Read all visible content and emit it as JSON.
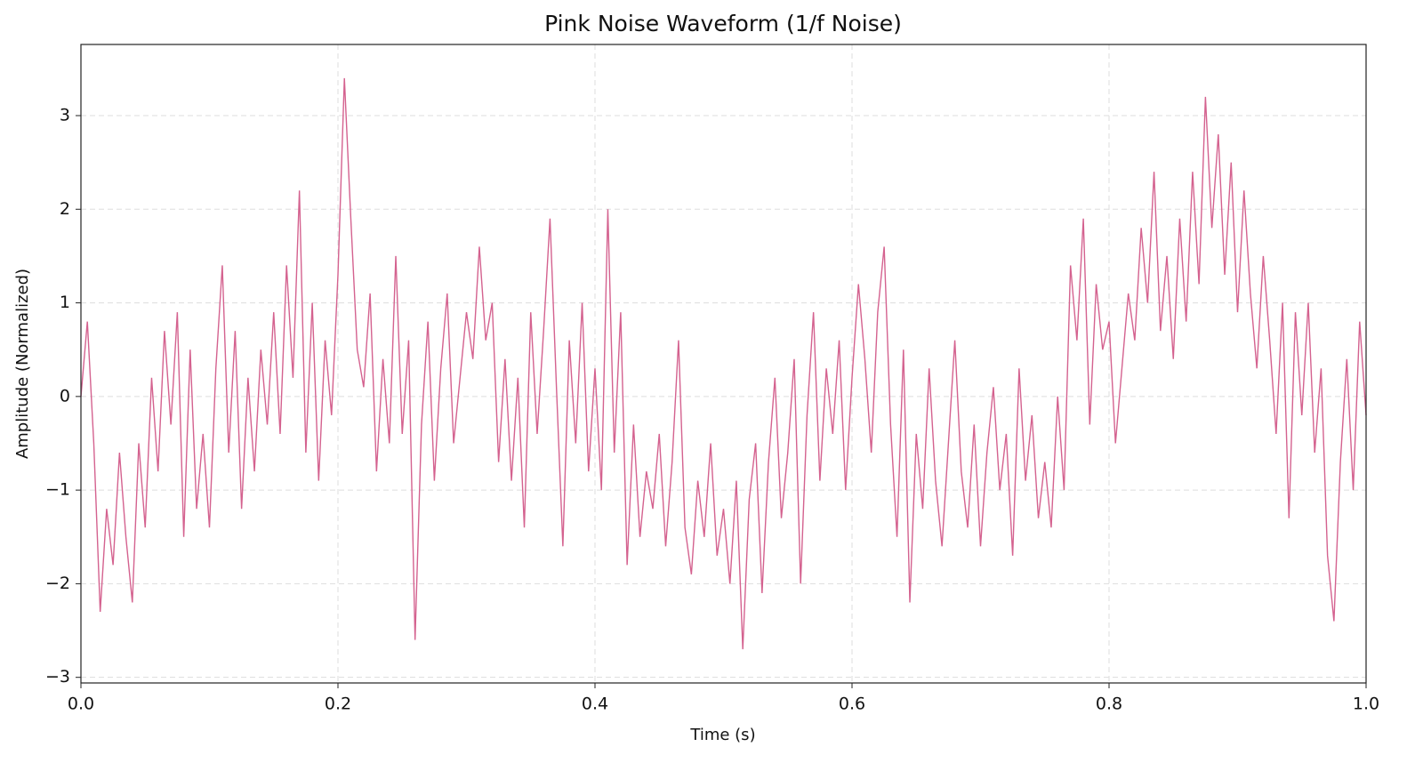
{
  "chart_data": {
    "type": "line",
    "title": "Pink Noise Waveform (1/f Noise)",
    "x_label": "Time (s)",
    "y_label": "Amplitude (Normalized)",
    "x": [
      0,
      0.005,
      0.01,
      0.015,
      0.02,
      0.025,
      0.03,
      0.035,
      0.04,
      0.045,
      0.05,
      0.055,
      0.06,
      0.065,
      0.07,
      0.075,
      0.08,
      0.085,
      0.09,
      0.095,
      0.1,
      0.105,
      0.11,
      0.115,
      0.12,
      0.125,
      0.13,
      0.135,
      0.14,
      0.145,
      0.15,
      0.155,
      0.16,
      0.165,
      0.17,
      0.175,
      0.18,
      0.185,
      0.19,
      0.195,
      0.2,
      0.205,
      0.21,
      0.215,
      0.22,
      0.225,
      0.23,
      0.235,
      0.24,
      0.245,
      0.25,
      0.255,
      0.26,
      0.265,
      0.27,
      0.275,
      0.28,
      0.285,
      0.29,
      0.295,
      0.3,
      0.305,
      0.31,
      0.315,
      0.32,
      0.325,
      0.33,
      0.335,
      0.34,
      0.345,
      0.35,
      0.355,
      0.36,
      0.365,
      0.37,
      0.375,
      0.38,
      0.385,
      0.39,
      0.395,
      0.4,
      0.405,
      0.41,
      0.415,
      0.42,
      0.425,
      0.43,
      0.435,
      0.44,
      0.445,
      0.45,
      0.455,
      0.46,
      0.465,
      0.47,
      0.475,
      0.48,
      0.485,
      0.49,
      0.495,
      0.5,
      0.505,
      0.51,
      0.515,
      0.52,
      0.525,
      0.53,
      0.535,
      0.54,
      0.545,
      0.55,
      0.555,
      0.56,
      0.565,
      0.57,
      0.575,
      0.58,
      0.585,
      0.59,
      0.595,
      0.6,
      0.605,
      0.61,
      0.615,
      0.62,
      0.625,
      0.63,
      0.635,
      0.64,
      0.645,
      0.65,
      0.655,
      0.66,
      0.665,
      0.67,
      0.675,
      0.68,
      0.685,
      0.69,
      0.695,
      0.7,
      0.705,
      0.71,
      0.715,
      0.72,
      0.725,
      0.73,
      0.735,
      0.74,
      0.745,
      0.75,
      0.755,
      0.76,
      0.765,
      0.77,
      0.775,
      0.78,
      0.785,
      0.79,
      0.795,
      0.8,
      0.805,
      0.81,
      0.815,
      0.82,
      0.825,
      0.83,
      0.835,
      0.84,
      0.845,
      0.85,
      0.855,
      0.86,
      0.865,
      0.87,
      0.875,
      0.88,
      0.885,
      0.89,
      0.895,
      0.9,
      0.905,
      0.91,
      0.915,
      0.92,
      0.925,
      0.93,
      0.935,
      0.94,
      0.945,
      0.95,
      0.955,
      0.96,
      0.965,
      0.97,
      0.975,
      0.98,
      0.985,
      0.99,
      0.995,
      1
    ],
    "series": [
      {
        "name": "Pink noise",
        "color": "#d4628f",
        "values": [
          0,
          0.8,
          -0.5,
          -2.3,
          -1.2,
          -1.8,
          -0.6,
          -1.5,
          -2.2,
          -0.5,
          -1.4,
          0.2,
          -0.8,
          0.7,
          -0.3,
          0.9,
          -1.5,
          0.5,
          -1.2,
          -0.4,
          -1.4,
          0.3,
          1.4,
          -0.6,
          0.7,
          -1.2,
          0.2,
          -0.8,
          0.5,
          -0.3,
          0.9,
          -0.4,
          1.4,
          0.2,
          2.2,
          -0.6,
          1.0,
          -0.9,
          0.6,
          -0.2,
          1.3,
          3.4,
          1.9,
          0.5,
          0.1,
          1.1,
          -0.8,
          0.4,
          -0.5,
          1.5,
          -0.4,
          0.6,
          -2.6,
          -0.3,
          0.8,
          -0.9,
          0.3,
          1.1,
          -0.5,
          0.2,
          0.9,
          0.4,
          1.6,
          0.6,
          1.0,
          -0.7,
          0.4,
          -0.9,
          0.2,
          -1.4,
          0.9,
          -0.4,
          0.7,
          1.9,
          0.1,
          -1.6,
          0.6,
          -0.5,
          1.0,
          -0.8,
          0.3,
          -1.0,
          2.0,
          -0.6,
          0.9,
          -1.8,
          -0.3,
          -1.5,
          -0.8,
          -1.2,
          -0.4,
          -1.6,
          -0.7,
          0.6,
          -1.4,
          -1.9,
          -0.9,
          -1.5,
          -0.5,
          -1.7,
          -1.2,
          -2.0,
          -0.9,
          -2.7,
          -1.1,
          -0.5,
          -2.1,
          -0.7,
          0.2,
          -1.3,
          -0.6,
          0.4,
          -2.0,
          -0.2,
          0.9,
          -0.9,
          0.3,
          -0.4,
          0.6,
          -1.0,
          0.2,
          1.2,
          0.4,
          -0.6,
          0.9,
          1.6,
          -0.3,
          -1.5,
          0.5,
          -2.2,
          -0.4,
          -1.2,
          0.3,
          -0.9,
          -1.6,
          -0.5,
          0.6,
          -0.8,
          -1.4,
          -0.3,
          -1.6,
          -0.6,
          0.1,
          -1.0,
          -0.4,
          -1.7,
          0.3,
          -0.9,
          -0.2,
          -1.3,
          -0.7,
          -1.4,
          0.0,
          -1.0,
          1.4,
          0.6,
          1.9,
          -0.3,
          1.2,
          0.5,
          0.8,
          -0.5,
          0.3,
          1.1,
          0.6,
          1.8,
          1.0,
          2.4,
          0.7,
          1.5,
          0.4,
          1.9,
          0.8,
          2.4,
          1.2,
          3.2,
          1.8,
          2.8,
          1.3,
          2.5,
          0.9,
          2.2,
          1.1,
          0.3,
          1.5,
          0.6,
          -0.4,
          1.0,
          -1.3,
          0.9,
          -0.2,
          1.0,
          -0.6,
          0.3,
          -1.7,
          -2.4,
          -0.7,
          0.4,
          -1.0,
          0.8,
          -0.2
        ]
      }
    ],
    "xlim": [
      0,
      1
    ],
    "xticks": [
      {
        "value": 0,
        "label": "0.0"
      },
      0.2,
      0.4,
      0.6,
      0.8,
      {
        "value": 1,
        "label": "1.0"
      }
    ],
    "ylim": [
      -3.06,
      3.76
    ],
    "yticks": [
      {
        "value": -3,
        "label": "−3"
      },
      {
        "value": -2,
        "label": "−2"
      },
      {
        "value": -1,
        "label": "−1"
      },
      0,
      1,
      2,
      3
    ],
    "grid": true
  }
}
